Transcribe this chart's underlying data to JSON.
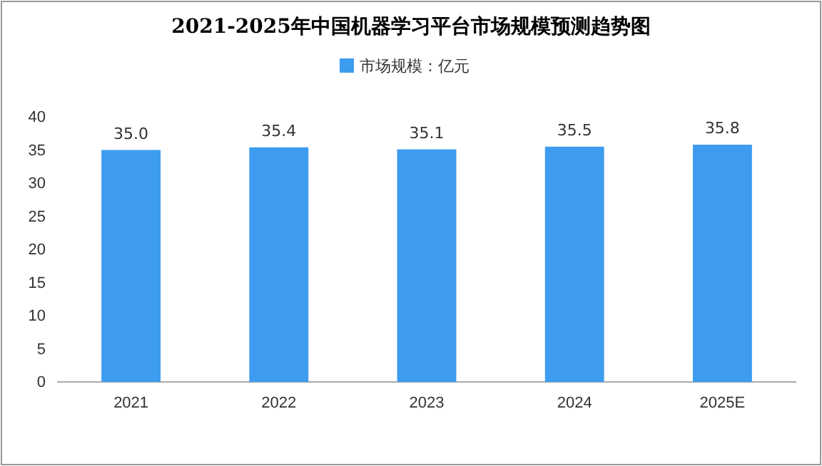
{
  "chart_data": {
    "type": "bar",
    "title": "2021-2025年中国机器学习平台市场规模预测趋势图",
    "categories": [
      "2021",
      "2022",
      "2023",
      "2024",
      "2025E"
    ],
    "series": [
      {
        "name": "市场规模：亿元",
        "color": "#3d9cf0",
        "values": [
          35.0,
          35.4,
          35.1,
          35.5,
          35.8
        ]
      }
    ],
    "value_labels": [
      "35.0",
      "35.4",
      "35.1",
      "35.5",
      "35.8"
    ],
    "ylim": [
      0,
      40
    ],
    "yticks": [
      0,
      5,
      10,
      15,
      20,
      25,
      30,
      35,
      40
    ],
    "grid": false,
    "legend": "top"
  }
}
